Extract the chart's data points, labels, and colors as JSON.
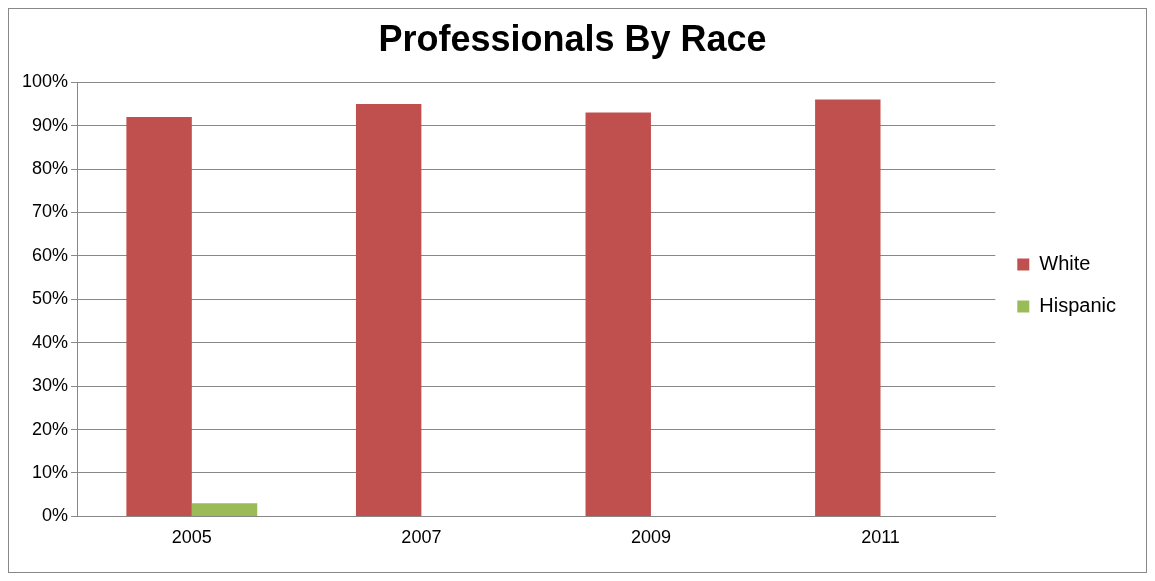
{
  "chart_data": {
    "type": "bar",
    "title": "Professionals By Race",
    "categories": [
      "2005",
      "2007",
      "2009",
      "2011"
    ],
    "series": [
      {
        "name": "White",
        "color": "#c0504d",
        "values": [
          92,
          95,
          93,
          96
        ]
      },
      {
        "name": "Hispanic",
        "color": "#9bbb59",
        "values": [
          3,
          null,
          null,
          null
        ]
      }
    ],
    "ylim": [
      0,
      100
    ],
    "yticks": [
      {
        "value": 0,
        "label": "0%"
      },
      {
        "value": 10,
        "label": "10%"
      },
      {
        "value": 20,
        "label": "20%"
      },
      {
        "value": 30,
        "label": "30%"
      },
      {
        "value": 40,
        "label": "40%"
      },
      {
        "value": 50,
        "label": "50%"
      },
      {
        "value": 60,
        "label": "60%"
      },
      {
        "value": 70,
        "label": "70%"
      },
      {
        "value": 80,
        "label": "80%"
      },
      {
        "value": 90,
        "label": "90%"
      },
      {
        "value": 100,
        "label": "100%"
      }
    ],
    "grid": "y",
    "legend": "right"
  }
}
